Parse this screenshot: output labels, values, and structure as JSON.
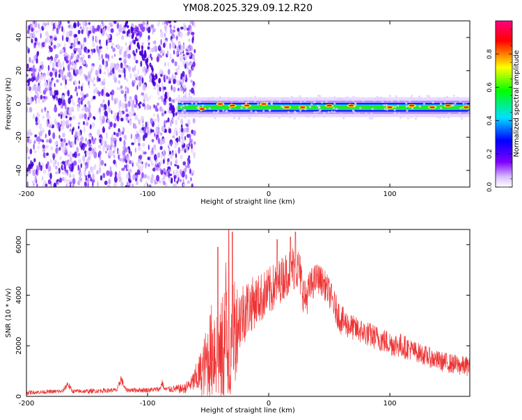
{
  "title": "YM08.2025.329.09.12.R20",
  "chart_data": [
    {
      "type": "heatmap",
      "xlabel": "Height of straight line (km)",
      "ylabel": "Frequency (Hz)",
      "xlim": [
        -200,
        166
      ],
      "ylim": [
        -50,
        50
      ],
      "x_ticks": [
        -200,
        -100,
        0,
        100
      ],
      "y_ticks": [
        -40,
        -20,
        0,
        20,
        40
      ],
      "noise_region_x": [
        -200,
        -65
      ],
      "ridge": {
        "x_start": -75,
        "x_end": 166,
        "frequency": -2,
        "bright_segments": [
          {
            "x": -55,
            "freq": -3
          },
          {
            "x": -40,
            "freq": 0
          },
          {
            "x": -30,
            "freq": -1
          },
          {
            "x": -18,
            "freq": -1
          },
          {
            "x": -4,
            "freq": 0
          },
          {
            "x": 15,
            "freq": -2
          },
          {
            "x": 28,
            "freq": -2
          },
          {
            "x": 50,
            "freq": -1
          },
          {
            "x": 68,
            "freq": -1
          },
          {
            "x": 100,
            "freq": -2
          },
          {
            "x": 118,
            "freq": -1
          },
          {
            "x": 135,
            "freq": -2
          },
          {
            "x": 148,
            "freq": -1
          },
          {
            "x": 163,
            "freq": -2
          }
        ]
      },
      "colorbar": {
        "label": "Normalized spectral amplitude",
        "ticks": [
          0.0,
          0.2,
          0.4,
          0.6,
          0.8
        ],
        "tick_labels": [
          "0.0",
          "0.2",
          "0.4",
          "0.6",
          "0.8"
        ],
        "range": [
          0,
          1
        ],
        "colormap": [
          "#ffffff",
          "#c8a8ff",
          "#8000ff",
          "#0000ff",
          "#00e0ff",
          "#00ff00",
          "#ffff00",
          "#ff0000",
          "#ff0080"
        ]
      }
    },
    {
      "type": "line",
      "xlabel": "Height of straight line (km)",
      "ylabel": "SNR (10 * v/v)",
      "xlim": [
        -200,
        166
      ],
      "ylim": [
        0,
        6600
      ],
      "x_ticks": [
        -200,
        -100,
        0,
        100
      ],
      "y_ticks": [
        0,
        2000,
        4000,
        6000
      ],
      "color": "#ee3333",
      "envelope": {
        "x": [
          -200,
          -170,
          -166,
          -162,
          -150,
          -125,
          -122,
          -118,
          -100,
          -90,
          -88,
          -86,
          -70,
          -64,
          -60,
          -55,
          -50,
          -45,
          -40,
          -35,
          -32,
          -30,
          -25,
          -20,
          -15,
          -10,
          0,
          10,
          20,
          25,
          30,
          35,
          40,
          45,
          50,
          55,
          60,
          70,
          80,
          90,
          100,
          110,
          120,
          130,
          140,
          150,
          160,
          166
        ],
        "base": [
          150,
          200,
          500,
          200,
          200,
          250,
          700,
          250,
          250,
          280,
          550,
          280,
          300,
          500,
          700,
          1000,
          1500,
          2000,
          1500,
          2500,
          600,
          2500,
          3000,
          3400,
          3600,
          3800,
          4100,
          4600,
          5100,
          5000,
          3800,
          4400,
          4700,
          4500,
          4100,
          3500,
          3000,
          2700,
          2500,
          2300,
          2100,
          2000,
          1800,
          1600,
          1400,
          1300,
          1200,
          1200
        ],
        "amp": [
          80,
          80,
          150,
          80,
          90,
          90,
          200,
          90,
          100,
          100,
          150,
          100,
          200,
          300,
          600,
          1000,
          1600,
          2200,
          1800,
          3500,
          500,
          3000,
          1400,
          1300,
          1100,
          1000,
          1000,
          900,
          900,
          900,
          800,
          700,
          600,
          600,
          600,
          600,
          600,
          500,
          500,
          500,
          500,
          500,
          400,
          400,
          400,
          400,
          400,
          400
        ]
      },
      "spikes": [
        {
          "x": -33,
          "y": 6600
        },
        {
          "x": -30,
          "y": 6500
        },
        {
          "x": -42,
          "y": 5900
        },
        {
          "x": 22,
          "y": 6500
        },
        {
          "x": 18,
          "y": 6300
        },
        {
          "x": 7,
          "y": 6200
        }
      ]
    }
  ]
}
